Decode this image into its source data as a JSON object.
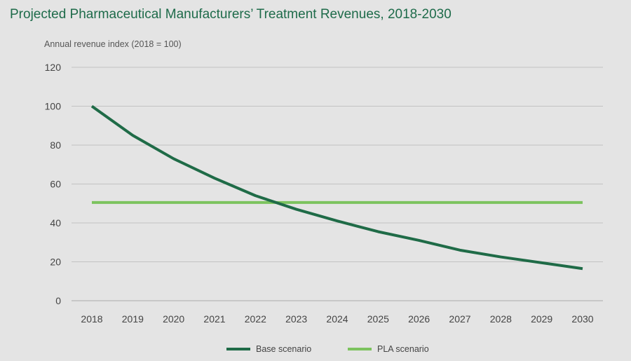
{
  "chart_data": {
    "type": "line",
    "title": "Projected Pharmaceutical Manufacturers’ Treatment Revenues, 2018-2030",
    "ylabel": "Annual revenue index (2018 = 100)",
    "xlabel": "",
    "ylim": [
      0,
      120
    ],
    "yticks": [
      0,
      20,
      40,
      60,
      80,
      100,
      120
    ],
    "grid": true,
    "legend_position": "bottom-center",
    "categories": [
      "2018",
      "2019",
      "2020",
      "2021",
      "2022",
      "2023",
      "2024",
      "2025",
      "2026",
      "2027",
      "2028",
      "2029",
      "2030"
    ],
    "series": [
      {
        "name": "Base scenario",
        "color": "#1f6b47",
        "values": [
          100,
          85,
          73,
          63,
          54,
          47,
          41,
          35.5,
          31,
          26,
          22.5,
          19.5,
          16.5
        ]
      },
      {
        "name": "PLA scenario",
        "color": "#7cc35e",
        "values": [
          50.5,
          50.5,
          50.5,
          50.5,
          50.5,
          50.5,
          50.5,
          50.5,
          50.5,
          50.5,
          50.5,
          50.5,
          50.5
        ]
      }
    ]
  }
}
